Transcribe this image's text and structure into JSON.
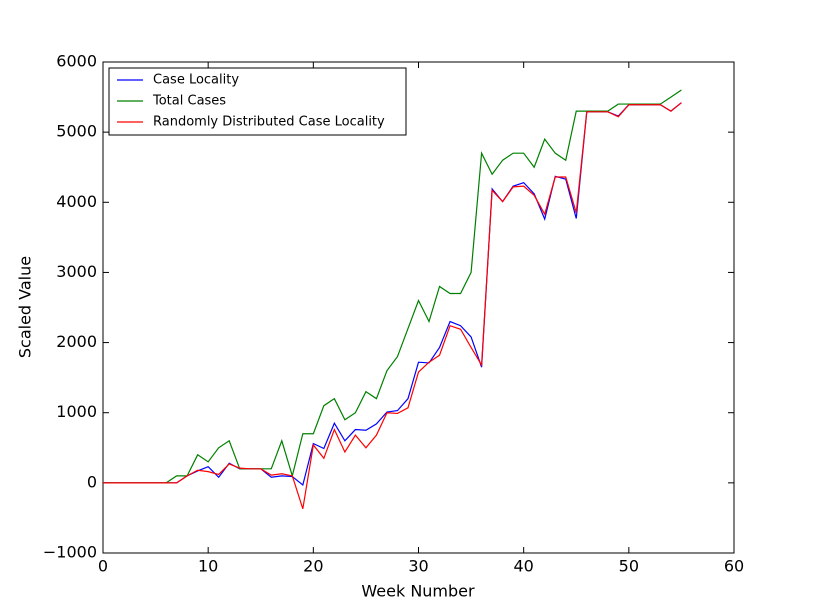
{
  "chart_data": {
    "type": "line",
    "xlabel": "Week Number",
    "ylabel": "Scaled Value",
    "x": [
      0,
      1,
      2,
      3,
      4,
      5,
      6,
      7,
      8,
      9,
      10,
      11,
      12,
      13,
      14,
      15,
      16,
      17,
      18,
      19,
      20,
      21,
      22,
      23,
      24,
      25,
      26,
      27,
      28,
      29,
      30,
      31,
      32,
      33,
      34,
      35,
      36,
      37,
      38,
      39,
      40,
      41,
      42,
      43,
      44,
      45,
      46,
      47,
      48,
      49,
      50,
      51,
      52,
      53,
      54,
      55
    ],
    "series": [
      {
        "name": "Case Locality",
        "color": "#0000ff",
        "values": [
          0,
          0,
          0,
          0,
          0,
          0,
          0,
          0,
          100,
          170,
          230,
          80,
          280,
          200,
          200,
          200,
          80,
          100,
          90,
          -30,
          560,
          490,
          850,
          600,
          760,
          750,
          840,
          1010,
          1030,
          1200,
          1720,
          1710,
          1930,
          2300,
          2240,
          2080,
          1650,
          4190,
          4010,
          4230,
          4280,
          4120,
          3760,
          4370,
          4330,
          3770,
          5290,
          5290,
          5290,
          5230,
          5390,
          5390,
          5390,
          5390,
          5300,
          5420
        ]
      },
      {
        "name": "Total Cases",
        "color": "#008000",
        "values": [
          0,
          0,
          0,
          0,
          0,
          0,
          0,
          100,
          100,
          400,
          300,
          500,
          600,
          200,
          200,
          200,
          200,
          600,
          100,
          700,
          700,
          1100,
          1200,
          900,
          1000,
          1300,
          1200,
          1600,
          1800,
          2200,
          2600,
          2300,
          2800,
          2700,
          2700,
          3000,
          4700,
          4400,
          4600,
          4700,
          4700,
          4500,
          4900,
          4700,
          4600,
          5300,
          5300,
          5300,
          5300,
          5400,
          5400,
          5400,
          5400,
          5400,
          5500,
          5600
        ]
      },
      {
        "name": "Randomly Distributed Case Locality",
        "color": "#ff0000",
        "values": [
          0,
          0,
          0,
          0,
          0,
          0,
          0,
          0,
          100,
          180,
          160,
          120,
          270,
          210,
          200,
          200,
          110,
          130,
          100,
          -370,
          540,
          350,
          760,
          440,
          680,
          500,
          680,
          1000,
          990,
          1070,
          1580,
          1720,
          1820,
          2240,
          2190,
          1930,
          1680,
          4170,
          4010,
          4220,
          4230,
          4100,
          3830,
          4360,
          4360,
          3850,
          5290,
          5290,
          5290,
          5220,
          5390,
          5390,
          5390,
          5390,
          5300,
          5420
        ]
      }
    ],
    "xlim": [
      0,
      60
    ],
    "xticks": [
      0,
      10,
      20,
      30,
      40,
      50,
      60
    ],
    "ylim": [
      -1000,
      6000
    ],
    "yticks": [
      {
        "value": -1000,
        "label": "−1000"
      },
      0,
      1000,
      2000,
      3000,
      4000,
      5000,
      6000
    ],
    "legend": "upper left",
    "grid": false
  }
}
